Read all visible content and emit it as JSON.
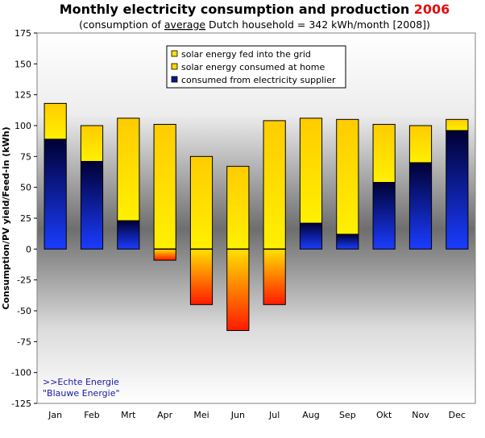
{
  "chart_data": {
    "type": "bar",
    "stacked": true,
    "title_main": "Monthly electricity consumption and production ",
    "title_year": "2006",
    "subtitle_pre": "(consumption of ",
    "subtitle_underlined": "average",
    "subtitle_post": " Dutch household = 342 kWh/month [2008])",
    "ylabel": "Consumption/PV yield/Feed-in (kWh)",
    "xlabel": "",
    "ylim": [
      -125,
      175
    ],
    "yticks": [
      175,
      150,
      125,
      100,
      75,
      50,
      25,
      0,
      -25,
      -50,
      -75,
      -100,
      -125
    ],
    "grid": false,
    "legend_position": "top-center",
    "categories": [
      "Jan",
      "Feb",
      "Mrt",
      "Apr",
      "Mei",
      "Jun",
      "Jul",
      "Aug",
      "Sep",
      "Okt",
      "Nov",
      "Dec"
    ],
    "series": [
      {
        "name": "solar energy fed into the grid",
        "values": [
          null,
          null,
          null,
          -9,
          -45,
          -66,
          -45,
          null,
          null,
          null,
          null,
          null
        ]
      },
      {
        "name": "solar energy consumed at home",
        "values": [
          29,
          29,
          83,
          101,
          75,
          67,
          104,
          85,
          93,
          47,
          30,
          9
        ]
      },
      {
        "name": "consumed from electricity supplier",
        "values": [
          89,
          71,
          23,
          0,
          0,
          0,
          0,
          21,
          12,
          54,
          70,
          96
        ]
      }
    ],
    "annotation": [
      ">>Echte Energie",
      "\"Blauwe Energie\""
    ],
    "colors": {
      "background_edge": "#ffffff",
      "background_mid": "#6e6e6e",
      "year": "#e01010",
      "annotation": "#1a1aa8",
      "grid_fed": [
        "#ffe000",
        "#ff1a00"
      ],
      "home": [
        "#ffcc00",
        "#fff000"
      ],
      "supplier": [
        "#000033",
        "#1a3cff"
      ]
    }
  }
}
